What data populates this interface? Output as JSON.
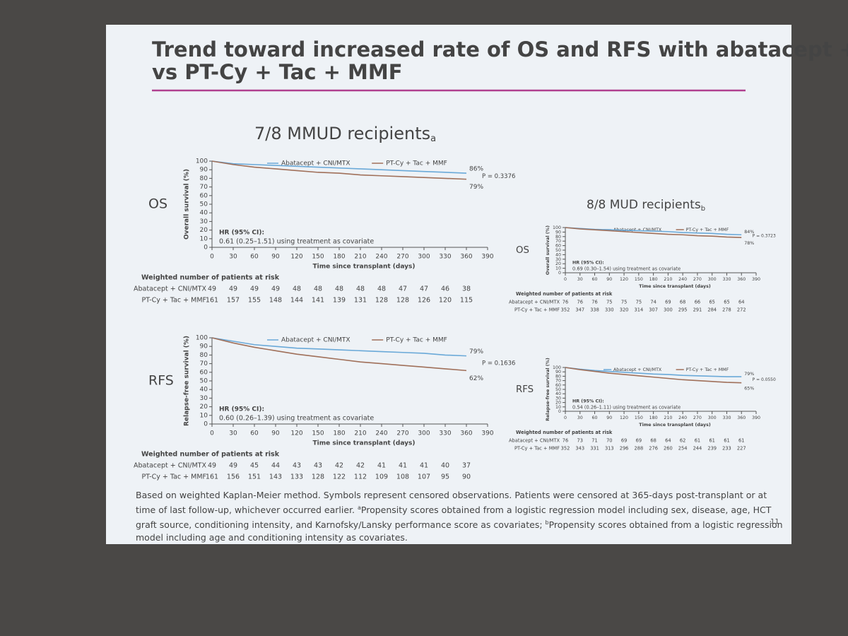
{
  "slide": {
    "title_lines": [
      "Trend toward increased rate of OS and RFS with abatacept + CNI/MTX",
      "vs PT-Cy + Tac + MMF"
    ],
    "groups": [
      {
        "heading": "7/8 MMUD recipients",
        "marker": "a"
      },
      {
        "heading": "8/8 MUD recipients",
        "marker": "b"
      }
    ],
    "footnote": {
      "main": "Based on weighted Kaplan-Meier method. Symbols represent censored observations. Patients were censored at 365-days post-transplant or at time of last follow-up, whichever occurred earlier.",
      "a": "Propensity scores obtained from a logistic regression model including sex, disease, age, HCT graft source, conditioning intensity, and Karnofsky/Lansky performance score as covariates;",
      "b": "Propensity scores obtained from a logistic regression model including age and conditioning intensity as covariates."
    },
    "page_number": "11"
  },
  "chart_data": [
    {
      "type": "line",
      "row_label": "OS",
      "y_label": "Overall survival (%)",
      "x_label": "Time since transplant (days)",
      "x": [
        0,
        30,
        60,
        90,
        120,
        150,
        180,
        210,
        240,
        270,
        300,
        330,
        360
      ],
      "series": [
        {
          "name": "Abatacept + CNI/MTX",
          "color": "#6aa9d8",
          "values": [
            100,
            97,
            96,
            95,
            94,
            93,
            92,
            91,
            90,
            89,
            88,
            87,
            86
          ],
          "end_label": "86%"
        },
        {
          "name": "PT-Cy + Tac + MMF",
          "color": "#a0705a",
          "values": [
            100,
            96,
            93,
            91,
            89,
            87,
            86,
            84,
            83,
            82,
            81,
            80,
            79
          ],
          "end_label": "79%"
        }
      ],
      "p_value": "P = 0.3376",
      "hr_label": "HR (95% CI):",
      "hr_text": "0.61 (0.25–1.51) using treatment as covariate",
      "xlim": [
        0,
        390
      ],
      "xticks": [
        0,
        30,
        60,
        90,
        120,
        150,
        180,
        210,
        240,
        270,
        300,
        330,
        360,
        390
      ],
      "ylim": [
        0,
        100
      ],
      "yticks": [
        0,
        10,
        20,
        30,
        40,
        50,
        60,
        70,
        80,
        90,
        100
      ],
      "risk_table": {
        "title": "Weighted number of patients at risk",
        "rows": [
          {
            "name": "Abatacept + CNI/MTX",
            "values": [
              49,
              49,
              49,
              49,
              48,
              48,
              48,
              48,
              48,
              47,
              47,
              46,
              38
            ]
          },
          {
            "name": "PT-Cy + Tac + MMF",
            "values": [
              161,
              157,
              155,
              148,
              144,
              141,
              139,
              131,
              128,
              128,
              126,
              120,
              115
            ]
          }
        ]
      }
    },
    {
      "type": "line",
      "row_label": "RFS",
      "y_label": "Relapse-free survival (%)",
      "x_label": "Time since transplant (days)",
      "x": [
        0,
        30,
        60,
        90,
        120,
        150,
        180,
        210,
        240,
        270,
        300,
        330,
        360
      ],
      "series": [
        {
          "name": "Abatacept + CNI/MTX",
          "color": "#6aa9d8",
          "values": [
            100,
            96,
            92,
            90,
            88,
            87,
            86,
            85,
            84,
            83,
            82,
            80,
            79
          ],
          "end_label": "79%"
        },
        {
          "name": "PT-Cy + Tac + MMF",
          "color": "#a0705a",
          "values": [
            100,
            94,
            89,
            85,
            81,
            78,
            75,
            72,
            70,
            68,
            66,
            64,
            62
          ],
          "end_label": "62%"
        }
      ],
      "p_value": "P = 0.1636",
      "hr_label": "HR (95% CI):",
      "hr_text": "0.60 (0.26–1.39) using treatment as covariate",
      "xlim": [
        0,
        390
      ],
      "xticks": [
        0,
        30,
        60,
        90,
        120,
        150,
        180,
        210,
        240,
        270,
        300,
        330,
        360,
        390
      ],
      "ylim": [
        0,
        100
      ],
      "yticks": [
        0,
        10,
        20,
        30,
        40,
        50,
        60,
        70,
        80,
        90,
        100
      ],
      "risk_table": {
        "title": "Weighted number of patients at risk",
        "rows": [
          {
            "name": "Abatacept + CNI/MTX",
            "values": [
              49,
              49,
              45,
              44,
              43,
              43,
              42,
              42,
              41,
              41,
              41,
              40,
              37
            ]
          },
          {
            "name": "PT-Cy + Tac + MMF",
            "values": [
              161,
              156,
              151,
              143,
              133,
              128,
              122,
              112,
              109,
              108,
              107,
              95,
              90
            ]
          }
        ]
      }
    },
    {
      "type": "line",
      "row_label": "OS",
      "y_label": "Overall survival (%)",
      "x_label": "Time since transplant (days)",
      "x": [
        0,
        30,
        60,
        90,
        120,
        150,
        180,
        210,
        240,
        270,
        300,
        330,
        360
      ],
      "series": [
        {
          "name": "Abatacept + CNI/MTX",
          "color": "#6aa9d8",
          "values": [
            100,
            98,
            96,
            95,
            94,
            93,
            92,
            91,
            89,
            88,
            87,
            85,
            84
          ],
          "end_label": "84%"
        },
        {
          "name": "PT-Cy + Tac + MMF",
          "color": "#a0705a",
          "values": [
            100,
            97,
            95,
            93,
            91,
            89,
            87,
            85,
            84,
            82,
            81,
            79,
            78
          ],
          "end_label": "78%"
        }
      ],
      "p_value": "P = 0.3723",
      "hr_label": "HR (95% CI):",
      "hr_text": "0.69 (0.30–1.54) using treatment as covariate",
      "xlim": [
        0,
        390
      ],
      "xticks": [
        0,
        30,
        60,
        90,
        120,
        150,
        180,
        210,
        240,
        270,
        300,
        330,
        360,
        390
      ],
      "ylim": [
        0,
        100
      ],
      "yticks": [
        0,
        10,
        20,
        30,
        40,
        50,
        60,
        70,
        80,
        90,
        100
      ],
      "risk_table": {
        "title": "Weighted number of patients at risk",
        "rows": [
          {
            "name": "Abatacept + CNI/MTX",
            "values": [
              76,
              76,
              76,
              75,
              75,
              75,
              74,
              69,
              68,
              66,
              65,
              65,
              64
            ]
          },
          {
            "name": "PT-Cy + Tac + MMF",
            "values": [
              352,
              347,
              338,
              330,
              320,
              314,
              307,
              300,
              295,
              291,
              284,
              278,
              272
            ]
          }
        ]
      }
    },
    {
      "type": "line",
      "row_label": "RFS",
      "y_label": "Relapse-free survival (%)",
      "x_label": "Time since transplant (days)",
      "x": [
        0,
        30,
        60,
        90,
        120,
        150,
        180,
        210,
        240,
        270,
        300,
        330,
        360
      ],
      "series": [
        {
          "name": "Abatacept + CNI/MTX",
          "color": "#6aa9d8",
          "values": [
            100,
            96,
            93,
            91,
            89,
            87,
            85,
            84,
            82,
            81,
            80,
            79,
            79
          ],
          "end_label": "79%"
        },
        {
          "name": "PT-Cy + Tac + MMF",
          "color": "#a0705a",
          "values": [
            100,
            95,
            91,
            87,
            84,
            81,
            78,
            75,
            72,
            70,
            68,
            66,
            65
          ],
          "end_label": "65%"
        }
      ],
      "p_value": "P = 0.0550",
      "hr_label": "HR (95% CI):",
      "hr_text": "0.54 (0.26–1.11) using treatment as covariate",
      "xlim": [
        0,
        390
      ],
      "xticks": [
        0,
        30,
        60,
        90,
        120,
        150,
        180,
        210,
        240,
        270,
        300,
        330,
        360,
        390
      ],
      "ylim": [
        0,
        100
      ],
      "yticks": [
        0,
        10,
        20,
        30,
        40,
        50,
        60,
        70,
        80,
        90,
        100
      ],
      "risk_table": {
        "title": "Weighted number of patients at risk",
        "rows": [
          {
            "name": "Abatacept + CNI/MTX",
            "values": [
              76,
              73,
              71,
              70,
              69,
              69,
              68,
              64,
              62,
              61,
              61,
              61,
              61
            ]
          },
          {
            "name": "PT-Cy + Tac + MMF",
            "values": [
              352,
              343,
              331,
              313,
              296,
              288,
              276,
              260,
              254,
              244,
              239,
              233,
              227
            ]
          }
        ]
      }
    }
  ]
}
